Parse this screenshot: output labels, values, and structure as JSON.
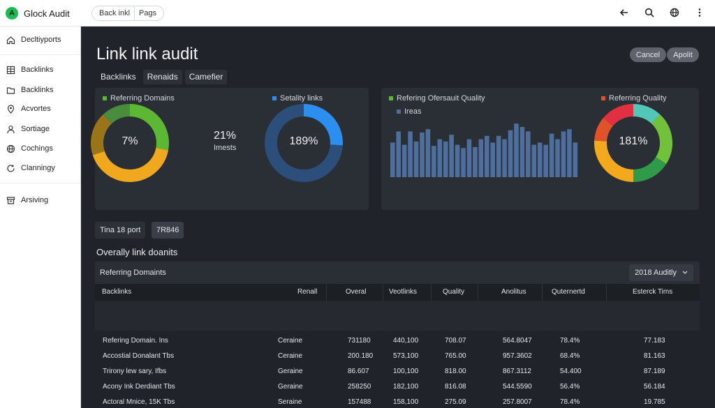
{
  "app": {
    "brand_initial": "A",
    "brand_name": "Glock Audit"
  },
  "breadcrumb": [
    "Back inkl",
    "Pags"
  ],
  "sidebar": {
    "items": [
      {
        "label": "Decltiyports",
        "icon": "home-icon"
      },
      {
        "label": "Backlinks",
        "icon": "grid-icon"
      },
      {
        "label": "Backlinks",
        "icon": "folder-icon"
      },
      {
        "label": "Acvortes",
        "icon": "location-pin-icon"
      },
      {
        "label": "Sortiage",
        "icon": "user-icon"
      },
      {
        "label": "Cochings",
        "icon": "globe-icon"
      },
      {
        "label": "Clanningy",
        "icon": "refresh-icon"
      },
      {
        "label": "Arsiving",
        "icon": "archive-icon"
      }
    ]
  },
  "page": {
    "title": "Link link audit",
    "cancel_label": "Cancel",
    "apply_label": "Apolit",
    "tabs": [
      "Backlinks",
      "Renaids",
      "Camefier"
    ]
  },
  "left_panel": {
    "legend_referring": "Referring Domains",
    "legend_security": "Setality links",
    "donut1_value": "7%",
    "stat_value": "21%",
    "stat_label": "Imests",
    "donut2_value": "189%"
  },
  "right_panel": {
    "legend_quality": "Refering Ofersauit Quality",
    "legend_ireas": "Ireas",
    "legend_refquality": "Referring Quality",
    "donut3_value": "181%"
  },
  "chart_data": [
    {
      "type": "pie",
      "center_label": "7%",
      "slices": [
        {
          "color": "#5cb832",
          "value": 28
        },
        {
          "color": "#f0a81f",
          "value": 42
        },
        {
          "color": "#9a7418",
          "value": 18
        },
        {
          "color": "#4a8c3e",
          "value": 12
        }
      ]
    },
    {
      "type": "pie",
      "center_label": "189%",
      "slices": [
        {
          "color": "#2c8ff0",
          "value": 26
        },
        {
          "color": "#2c4e7a",
          "value": 74
        }
      ]
    },
    {
      "type": "bar",
      "values": [
        62,
        82,
        58,
        82,
        64,
        80,
        86,
        56,
        68,
        64,
        76,
        58,
        52,
        68,
        54,
        68,
        74,
        62,
        74,
        68,
        84,
        96,
        90,
        82,
        58,
        62,
        58,
        78,
        68,
        82,
        86,
        62
      ],
      "ylim": [
        0,
        100
      ],
      "color": "#4e6e9e"
    },
    {
      "type": "pie",
      "center_label": "181%",
      "slices": [
        {
          "color": "#52c7b8",
          "value": 12
        },
        {
          "color": "#72c13a",
          "value": 22
        },
        {
          "color": "#2f9a4a",
          "value": 16
        },
        {
          "color": "#f2a91e",
          "value": 26
        },
        {
          "color": "#e0532a",
          "value": 10
        },
        {
          "color": "#e03042",
          "value": 14
        }
      ]
    }
  ],
  "report": {
    "chip1": "Tina 18 port",
    "chip2": "7R846",
    "section_title": "Overally link doanits",
    "table_label": "Referring Domaints",
    "dropdown_value": "2018 Auditly"
  },
  "table": {
    "columns": [
      "Backlinks",
      "Renall",
      "Overal",
      "Veotlinks",
      "Quality",
      "Anolitus",
      "Quternertd",
      "Esterck Tims"
    ],
    "rows": [
      [
        "Refering Domain. Ins",
        "Ceraine",
        "731180",
        "440,100",
        "708.07",
        "564.8047",
        "78.4%",
        "77.183"
      ],
      [
        "Accostial Donalant Tbs",
        "Ceraine",
        "200.180",
        "573,100",
        "765.00",
        "957.3602",
        "68.4%",
        "81.163"
      ],
      [
        "Trirony lew sary, Ifbs",
        "Geraine",
        "86.607",
        "100,100",
        "818.00",
        "867.3112",
        "54.400",
        "87.189"
      ],
      [
        "Acony Ink Derdiant Tbs",
        "Geraine",
        "258250",
        "182,100",
        "816.08",
        "544.5590",
        "56.4%",
        "56.184"
      ],
      [
        "Actoral Mnice, 15K Tbs",
        "Seraine",
        "157488",
        "158,100",
        "275.09",
        "257.8007",
        "78.4%",
        "19.785"
      ]
    ]
  }
}
